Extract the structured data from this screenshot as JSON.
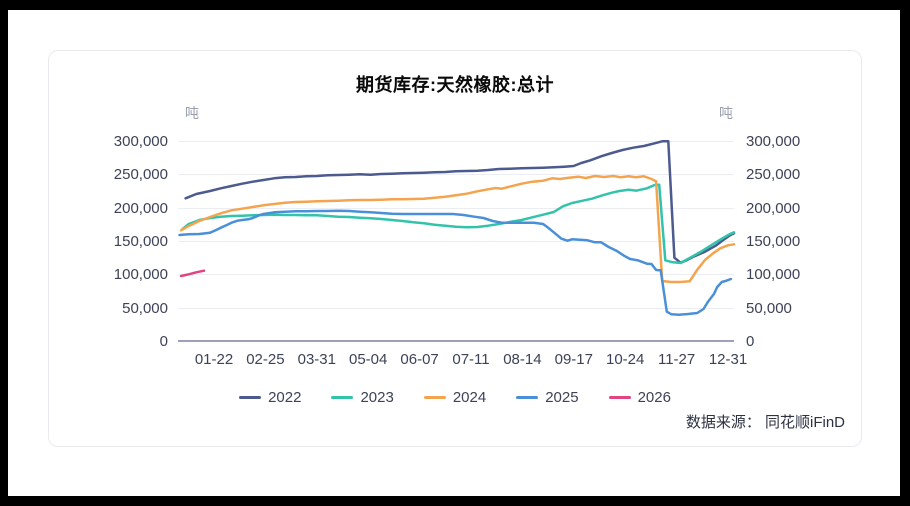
{
  "page": {
    "source": "数据来源： 同花顺iFinD"
  },
  "chart_data": {
    "type": "line",
    "title": "期货库存:天然橡胶:总计",
    "unit_left": "吨",
    "unit_right": "吨",
    "legend_position": "bottom",
    "grid": true,
    "y_axis": {
      "min": 0,
      "max": 300000,
      "tick_step": 50000,
      "ticks": [
        {
          "value": 0,
          "label": "0"
        },
        {
          "value": 50000,
          "label": "50,000"
        },
        {
          "value": 100000,
          "label": "100,000"
        },
        {
          "value": 150000,
          "label": "150,000"
        },
        {
          "value": 200000,
          "label": "200,000"
        },
        {
          "value": 250000,
          "label": "250,000"
        },
        {
          "value": 300000,
          "label": "300,000"
        }
      ]
    },
    "x_axis": {
      "range_days": [
        1,
        365
      ],
      "ticks": [
        "01-22",
        "02-25",
        "03-31",
        "05-04",
        "06-07",
        "07-11",
        "08-14",
        "09-17",
        "10-24",
        "11-27",
        "12-31"
      ]
    },
    "series": [
      {
        "name": "2022",
        "color": "#4c5a90",
        "points": [
          [
            6,
            214000
          ],
          [
            13,
            220500
          ],
          [
            22,
            225000
          ],
          [
            29,
            229000
          ],
          [
            36,
            232500
          ],
          [
            43,
            236000
          ],
          [
            50,
            239000
          ],
          [
            57,
            241500
          ],
          [
            64,
            244000
          ],
          [
            71,
            245500
          ],
          [
            78,
            246000
          ],
          [
            85,
            247000
          ],
          [
            92,
            247500
          ],
          [
            99,
            248500
          ],
          [
            106,
            249000
          ],
          [
            113,
            249500
          ],
          [
            120,
            250000
          ],
          [
            127,
            249500
          ],
          [
            134,
            250500
          ],
          [
            141,
            251000
          ],
          [
            148,
            251500
          ],
          [
            155,
            252000
          ],
          [
            162,
            252500
          ],
          [
            169,
            253000
          ],
          [
            176,
            253500
          ],
          [
            183,
            254500
          ],
          [
            190,
            255000
          ],
          [
            197,
            255500
          ],
          [
            204,
            256500
          ],
          [
            211,
            258000
          ],
          [
            218,
            258500
          ],
          [
            226,
            259000
          ],
          [
            233,
            259500
          ],
          [
            240,
            260000
          ],
          [
            247,
            260500
          ],
          [
            254,
            261500
          ],
          [
            260,
            262500
          ],
          [
            265,
            267000
          ],
          [
            271,
            271000
          ],
          [
            278,
            277000
          ],
          [
            285,
            282000
          ],
          [
            292,
            286500
          ],
          [
            299,
            290000
          ],
          [
            306,
            292500
          ],
          [
            313,
            296500
          ],
          [
            318,
            299500
          ],
          [
            322,
            299500
          ],
          [
            326,
            125000
          ],
          [
            330,
            117500
          ],
          [
            334,
            121000
          ],
          [
            339,
            127000
          ],
          [
            346,
            134000
          ],
          [
            353,
            143000
          ],
          [
            358,
            151500
          ],
          [
            362,
            158000
          ],
          [
            365,
            161500
          ]
        ]
      },
      {
        "name": "2023",
        "color": "#33c3ab",
        "points": [
          [
            4,
            168000
          ],
          [
            8,
            175500
          ],
          [
            15,
            181500
          ],
          [
            22,
            184500
          ],
          [
            29,
            186500
          ],
          [
            36,
            187500
          ],
          [
            43,
            188000
          ],
          [
            50,
            188500
          ],
          [
            57,
            189000
          ],
          [
            64,
            189500
          ],
          [
            71,
            189000
          ],
          [
            78,
            189000
          ],
          [
            85,
            188500
          ],
          [
            92,
            188500
          ],
          [
            99,
            187500
          ],
          [
            106,
            186500
          ],
          [
            113,
            186000
          ],
          [
            120,
            185000
          ],
          [
            127,
            184000
          ],
          [
            134,
            183000
          ],
          [
            141,
            181500
          ],
          [
            148,
            180000
          ],
          [
            155,
            178000
          ],
          [
            162,
            176500
          ],
          [
            169,
            174500
          ],
          [
            176,
            173000
          ],
          [
            183,
            171500
          ],
          [
            190,
            170500
          ],
          [
            197,
            171000
          ],
          [
            204,
            173000
          ],
          [
            211,
            175500
          ],
          [
            218,
            178500
          ],
          [
            226,
            181500
          ],
          [
            233,
            185500
          ],
          [
            240,
            189500
          ],
          [
            247,
            193500
          ],
          [
            253,
            202000
          ],
          [
            259,
            207000
          ],
          [
            266,
            210500
          ],
          [
            272,
            213500
          ],
          [
            279,
            218500
          ],
          [
            285,
            222500
          ],
          [
            290,
            225000
          ],
          [
            296,
            227000
          ],
          [
            301,
            225500
          ],
          [
            308,
            229000
          ],
          [
            313,
            234000
          ],
          [
            316,
            234500
          ],
          [
            320,
            121000
          ],
          [
            325,
            118000
          ],
          [
            330,
            117000
          ],
          [
            336,
            124500
          ],
          [
            343,
            133500
          ],
          [
            350,
            143500
          ],
          [
            357,
            153500
          ],
          [
            362,
            160000
          ],
          [
            365,
            163000
          ]
        ]
      },
      {
        "name": "2024",
        "color": "#f4a44e",
        "points": [
          [
            3,
            166000
          ],
          [
            8,
            172500
          ],
          [
            15,
            180000
          ],
          [
            22,
            186000
          ],
          [
            29,
            191500
          ],
          [
            36,
            196000
          ],
          [
            43,
            198500
          ],
          [
            50,
            201000
          ],
          [
            57,
            203500
          ],
          [
            64,
            205500
          ],
          [
            71,
            207500
          ],
          [
            78,
            208500
          ],
          [
            85,
            209000
          ],
          [
            92,
            209500
          ],
          [
            99,
            210000
          ],
          [
            106,
            210500
          ],
          [
            113,
            211000
          ],
          [
            120,
            211500
          ],
          [
            127,
            211500
          ],
          [
            134,
            212000
          ],
          [
            141,
            212500
          ],
          [
            148,
            212500
          ],
          [
            155,
            213000
          ],
          [
            162,
            213500
          ],
          [
            169,
            215000
          ],
          [
            176,
            216500
          ],
          [
            183,
            218500
          ],
          [
            190,
            221000
          ],
          [
            197,
            224500
          ],
          [
            204,
            227500
          ],
          [
            209,
            229500
          ],
          [
            213,
            228500
          ],
          [
            218,
            231500
          ],
          [
            226,
            236000
          ],
          [
            233,
            239000
          ],
          [
            240,
            240500
          ],
          [
            246,
            244000
          ],
          [
            251,
            243000
          ],
          [
            257,
            245000
          ],
          [
            263,
            246500
          ],
          [
            268,
            244500
          ],
          [
            274,
            247500
          ],
          [
            280,
            246000
          ],
          [
            286,
            247500
          ],
          [
            291,
            245500
          ],
          [
            296,
            247000
          ],
          [
            301,
            245500
          ],
          [
            306,
            247000
          ],
          [
            311,
            243000
          ],
          [
            314,
            239500
          ],
          [
            318,
            90000
          ],
          [
            324,
            88500
          ],
          [
            330,
            88500
          ],
          [
            336,
            89500
          ],
          [
            341,
            107000
          ],
          [
            346,
            121500
          ],
          [
            351,
            131000
          ],
          [
            356,
            139000
          ],
          [
            361,
            143500
          ],
          [
            365,
            145000
          ]
        ]
      },
      {
        "name": "2025",
        "color": "#4a90d8",
        "points": [
          [
            2,
            159000
          ],
          [
            8,
            160000
          ],
          [
            15,
            160500
          ],
          [
            22,
            162500
          ],
          [
            26,
            166500
          ],
          [
            29,
            170000
          ],
          [
            33,
            174000
          ],
          [
            36,
            177500
          ],
          [
            40,
            180500
          ],
          [
            43,
            181500
          ],
          [
            47,
            182500
          ],
          [
            50,
            184500
          ],
          [
            54,
            188500
          ],
          [
            57,
            190500
          ],
          [
            64,
            193000
          ],
          [
            71,
            194000
          ],
          [
            78,
            194500
          ],
          [
            85,
            194500
          ],
          [
            92,
            195000
          ],
          [
            99,
            195000
          ],
          [
            106,
            195500
          ],
          [
            113,
            195000
          ],
          [
            120,
            194000
          ],
          [
            127,
            193000
          ],
          [
            134,
            192000
          ],
          [
            141,
            191000
          ],
          [
            148,
            190500
          ],
          [
            155,
            190500
          ],
          [
            162,
            190500
          ],
          [
            169,
            190500
          ],
          [
            176,
            190500
          ],
          [
            181,
            190500
          ],
          [
            188,
            189000
          ],
          [
            195,
            186500
          ],
          [
            201,
            184500
          ],
          [
            207,
            180000
          ],
          [
            213,
            177500
          ],
          [
            220,
            177500
          ],
          [
            227,
            177500
          ],
          [
            234,
            177500
          ],
          [
            240,
            175500
          ],
          [
            243,
            170500
          ],
          [
            247,
            163000
          ],
          [
            252,
            153500
          ],
          [
            256,
            150500
          ],
          [
            259,
            152500
          ],
          [
            264,
            152000
          ],
          [
            269,
            151000
          ],
          [
            274,
            148000
          ],
          [
            278,
            148000
          ],
          [
            283,
            141000
          ],
          [
            288,
            135500
          ],
          [
            293,
            128000
          ],
          [
            297,
            123000
          ],
          [
            302,
            121000
          ],
          [
            308,
            116000
          ],
          [
            311,
            115500
          ],
          [
            314,
            106500
          ],
          [
            317,
            106000
          ],
          [
            321,
            44000
          ],
          [
            324,
            40000
          ],
          [
            329,
            39500
          ],
          [
            335,
            40500
          ],
          [
            341,
            42000
          ],
          [
            345,
            48000
          ],
          [
            348,
            59000
          ],
          [
            352,
            71000
          ],
          [
            354,
            81000
          ],
          [
            357,
            88500
          ],
          [
            360,
            90500
          ],
          [
            363,
            93000
          ]
        ]
      },
      {
        "name": "2026",
        "color": "#e14480",
        "points": [
          [
            3,
            97500
          ],
          [
            8,
            100000
          ],
          [
            13,
            103000
          ],
          [
            18,
            105500
          ]
        ]
      }
    ]
  }
}
